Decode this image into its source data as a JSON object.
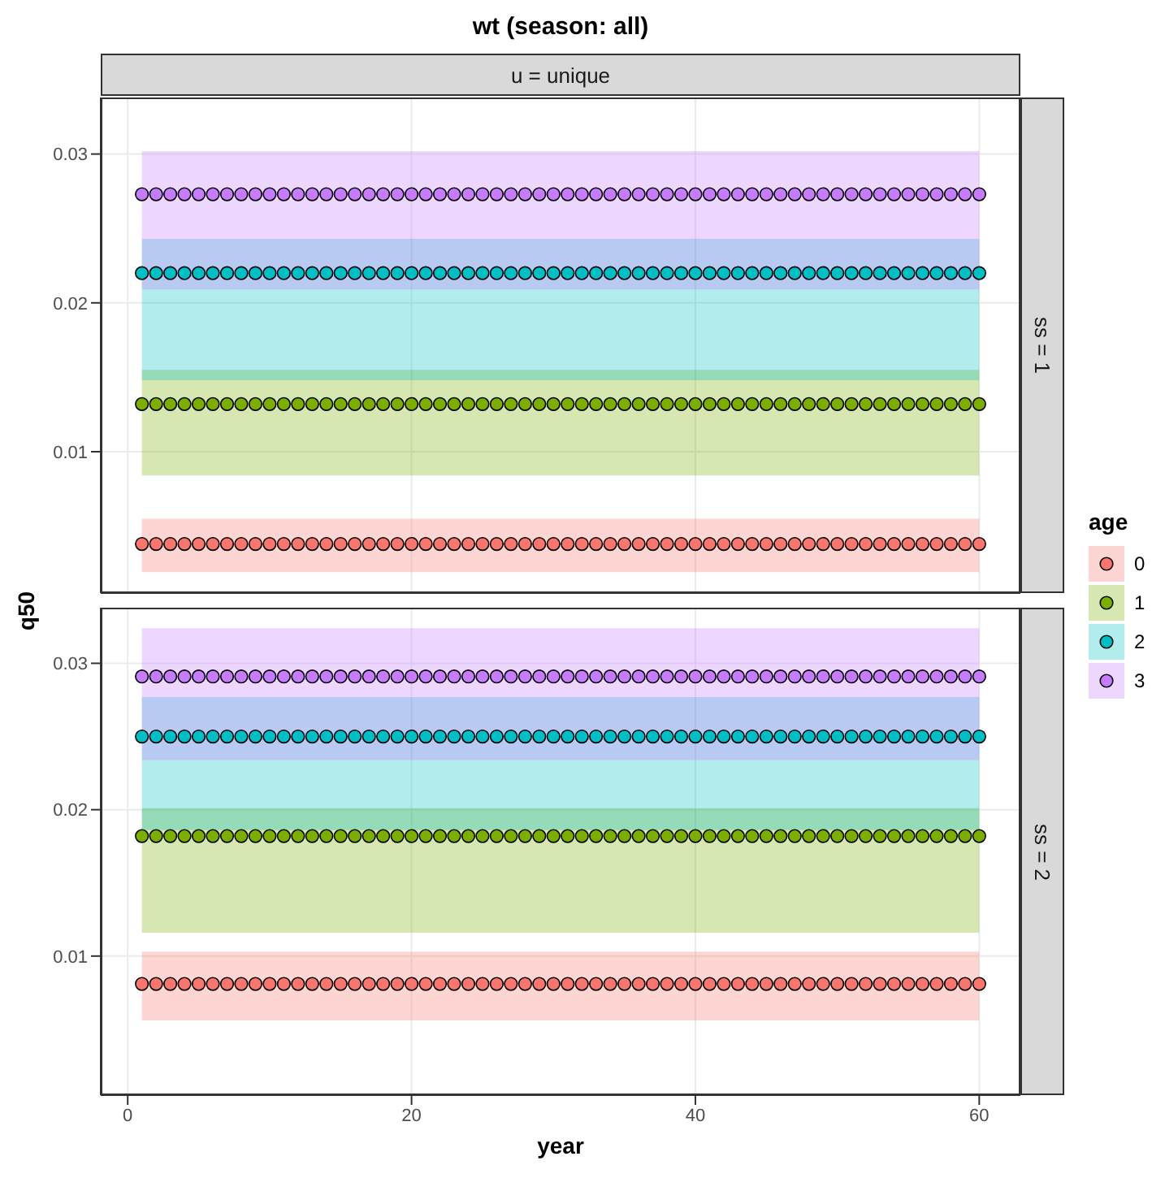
{
  "chart_data": [
    {
      "type": "scatter",
      "title": "wt (season: all)",
      "ylabel": "q50",
      "legend_title": "age",
      "legend": "right",
      "annotations": [
        "u = unique",
        "ss = 1"
      ],
      "tick_labels": "y",
      "marker": "circle",
      "grid": true,
      "xlim": [
        -1.9,
        62.9
      ],
      "xticks": [
        0,
        20,
        40,
        60
      ],
      "ylim": [
        0.0005,
        0.0338
      ],
      "yticks": [
        0.01,
        0.02,
        0.03
      ],
      "x": [
        1,
        2,
        3,
        4,
        5,
        6,
        7,
        8,
        9,
        10,
        11,
        12,
        13,
        14,
        15,
        16,
        17,
        18,
        19,
        20,
        21,
        22,
        23,
        24,
        25,
        26,
        27,
        28,
        29,
        30,
        31,
        32,
        33,
        34,
        35,
        36,
        37,
        38,
        39,
        40,
        41,
        42,
        43,
        44,
        45,
        46,
        47,
        48,
        49,
        50,
        51,
        52,
        53,
        54,
        55,
        56,
        57,
        58,
        59,
        60
      ],
      "series": [
        {
          "name": "0",
          "color": "#f8766d",
          "values": [
            0.0038,
            0.0038,
            0.0038,
            0.0038,
            0.0038,
            0.0038,
            0.0038,
            0.0038,
            0.0038,
            0.0038,
            0.0038,
            0.0038,
            0.0038,
            0.0038,
            0.0038,
            0.0038,
            0.0038,
            0.0038,
            0.0038,
            0.0038,
            0.0038,
            0.0038,
            0.0038,
            0.0038,
            0.0038,
            0.0038,
            0.0038,
            0.0038,
            0.0038,
            0.0038,
            0.0038,
            0.0038,
            0.0038,
            0.0038,
            0.0038,
            0.0038,
            0.0038,
            0.0038,
            0.0038,
            0.0038,
            0.0038,
            0.0038,
            0.0038,
            0.0038,
            0.0038,
            0.0038,
            0.0038,
            0.0038,
            0.0038,
            0.0038,
            0.0038,
            0.0038,
            0.0038,
            0.0038,
            0.0038,
            0.0038,
            0.0038,
            0.0038,
            0.0038,
            0.0038
          ],
          "lower": [
            0.0019,
            0.0019,
            0.0019,
            0.0019,
            0.0019,
            0.0019,
            0.0019,
            0.0019,
            0.0019,
            0.0019,
            0.0019,
            0.0019,
            0.0019,
            0.0019,
            0.0019,
            0.0019,
            0.0019,
            0.0019,
            0.0019,
            0.0019,
            0.0019,
            0.0019,
            0.0019,
            0.0019,
            0.0019,
            0.0019,
            0.0019,
            0.0019,
            0.0019,
            0.0019,
            0.0019,
            0.0019,
            0.0019,
            0.0019,
            0.0019,
            0.0019,
            0.0019,
            0.0019,
            0.0019,
            0.0019,
            0.0019,
            0.0019,
            0.0019,
            0.0019,
            0.0019,
            0.0019,
            0.0019,
            0.0019,
            0.0019,
            0.0019,
            0.0019,
            0.0019,
            0.0019,
            0.0019,
            0.0019,
            0.0019,
            0.0019,
            0.0019,
            0.0019,
            0.0019
          ],
          "upper": [
            0.0055,
            0.0055,
            0.0055,
            0.0055,
            0.0055,
            0.0055,
            0.0055,
            0.0055,
            0.0055,
            0.0055,
            0.0055,
            0.0055,
            0.0055,
            0.0055,
            0.0055,
            0.0055,
            0.0055,
            0.0055,
            0.0055,
            0.0055,
            0.0055,
            0.0055,
            0.0055,
            0.0055,
            0.0055,
            0.0055,
            0.0055,
            0.0055,
            0.0055,
            0.0055,
            0.0055,
            0.0055,
            0.0055,
            0.0055,
            0.0055,
            0.0055,
            0.0055,
            0.0055,
            0.0055,
            0.0055,
            0.0055,
            0.0055,
            0.0055,
            0.0055,
            0.0055,
            0.0055,
            0.0055,
            0.0055,
            0.0055,
            0.0055,
            0.0055,
            0.0055,
            0.0055,
            0.0055,
            0.0055,
            0.0055,
            0.0055,
            0.0055,
            0.0055,
            0.0055
          ]
        },
        {
          "name": "1",
          "color": "#7cae00",
          "values": [
            0.0132,
            0.0132,
            0.0132,
            0.0132,
            0.0132,
            0.0132,
            0.0132,
            0.0132,
            0.0132,
            0.0132,
            0.0132,
            0.0132,
            0.0132,
            0.0132,
            0.0132,
            0.0132,
            0.0132,
            0.0132,
            0.0132,
            0.0132,
            0.0132,
            0.0132,
            0.0132,
            0.0132,
            0.0132,
            0.0132,
            0.0132,
            0.0132,
            0.0132,
            0.0132,
            0.0132,
            0.0132,
            0.0132,
            0.0132,
            0.0132,
            0.0132,
            0.0132,
            0.0132,
            0.0132,
            0.0132,
            0.0132,
            0.0132,
            0.0132,
            0.0132,
            0.0132,
            0.0132,
            0.0132,
            0.0132,
            0.0132,
            0.0132,
            0.0132,
            0.0132,
            0.0132,
            0.0132,
            0.0132,
            0.0132,
            0.0132,
            0.0132,
            0.0132,
            0.0132
          ],
          "lower": [
            0.0084,
            0.0084,
            0.0084,
            0.0084,
            0.0084,
            0.0084,
            0.0084,
            0.0084,
            0.0084,
            0.0084,
            0.0084,
            0.0084,
            0.0084,
            0.0084,
            0.0084,
            0.0084,
            0.0084,
            0.0084,
            0.0084,
            0.0084,
            0.0084,
            0.0084,
            0.0084,
            0.0084,
            0.0084,
            0.0084,
            0.0084,
            0.0084,
            0.0084,
            0.0084,
            0.0084,
            0.0084,
            0.0084,
            0.0084,
            0.0084,
            0.0084,
            0.0084,
            0.0084,
            0.0084,
            0.0084,
            0.0084,
            0.0084,
            0.0084,
            0.0084,
            0.0084,
            0.0084,
            0.0084,
            0.0084,
            0.0084,
            0.0084,
            0.0084,
            0.0084,
            0.0084,
            0.0084,
            0.0084,
            0.0084,
            0.0084,
            0.0084,
            0.0084,
            0.0084
          ],
          "upper": [
            0.0155,
            0.0155,
            0.0155,
            0.0155,
            0.0155,
            0.0155,
            0.0155,
            0.0155,
            0.0155,
            0.0155,
            0.0155,
            0.0155,
            0.0155,
            0.0155,
            0.0155,
            0.0155,
            0.0155,
            0.0155,
            0.0155,
            0.0155,
            0.0155,
            0.0155,
            0.0155,
            0.0155,
            0.0155,
            0.0155,
            0.0155,
            0.0155,
            0.0155,
            0.0155,
            0.0155,
            0.0155,
            0.0155,
            0.0155,
            0.0155,
            0.0155,
            0.0155,
            0.0155,
            0.0155,
            0.0155,
            0.0155,
            0.0155,
            0.0155,
            0.0155,
            0.0155,
            0.0155,
            0.0155,
            0.0155,
            0.0155,
            0.0155,
            0.0155,
            0.0155,
            0.0155,
            0.0155,
            0.0155,
            0.0155,
            0.0155,
            0.0155,
            0.0155,
            0.0155
          ]
        },
        {
          "name": "2",
          "color": "#00bfc4",
          "values": [
            0.022,
            0.022,
            0.022,
            0.022,
            0.022,
            0.022,
            0.022,
            0.022,
            0.022,
            0.022,
            0.022,
            0.022,
            0.022,
            0.022,
            0.022,
            0.022,
            0.022,
            0.022,
            0.022,
            0.022,
            0.022,
            0.022,
            0.022,
            0.022,
            0.022,
            0.022,
            0.022,
            0.022,
            0.022,
            0.022,
            0.022,
            0.022,
            0.022,
            0.022,
            0.022,
            0.022,
            0.022,
            0.022,
            0.022,
            0.022,
            0.022,
            0.022,
            0.022,
            0.022,
            0.022,
            0.022,
            0.022,
            0.022,
            0.022,
            0.022,
            0.022,
            0.022,
            0.022,
            0.022,
            0.022,
            0.022,
            0.022,
            0.022,
            0.022,
            0.022
          ],
          "lower": [
            0.0148,
            0.0148,
            0.0148,
            0.0148,
            0.0148,
            0.0148,
            0.0148,
            0.0148,
            0.0148,
            0.0148,
            0.0148,
            0.0148,
            0.0148,
            0.0148,
            0.0148,
            0.0148,
            0.0148,
            0.0148,
            0.0148,
            0.0148,
            0.0148,
            0.0148,
            0.0148,
            0.0148,
            0.0148,
            0.0148,
            0.0148,
            0.0148,
            0.0148,
            0.0148,
            0.0148,
            0.0148,
            0.0148,
            0.0148,
            0.0148,
            0.0148,
            0.0148,
            0.0148,
            0.0148,
            0.0148,
            0.0148,
            0.0148,
            0.0148,
            0.0148,
            0.0148,
            0.0148,
            0.0148,
            0.0148,
            0.0148,
            0.0148,
            0.0148,
            0.0148,
            0.0148,
            0.0148,
            0.0148,
            0.0148,
            0.0148,
            0.0148,
            0.0148,
            0.0148
          ],
          "upper": [
            0.0243,
            0.0243,
            0.0243,
            0.0243,
            0.0243,
            0.0243,
            0.0243,
            0.0243,
            0.0243,
            0.0243,
            0.0243,
            0.0243,
            0.0243,
            0.0243,
            0.0243,
            0.0243,
            0.0243,
            0.0243,
            0.0243,
            0.0243,
            0.0243,
            0.0243,
            0.0243,
            0.0243,
            0.0243,
            0.0243,
            0.0243,
            0.0243,
            0.0243,
            0.0243,
            0.0243,
            0.0243,
            0.0243,
            0.0243,
            0.0243,
            0.0243,
            0.0243,
            0.0243,
            0.0243,
            0.0243,
            0.0243,
            0.0243,
            0.0243,
            0.0243,
            0.0243,
            0.0243,
            0.0243,
            0.0243,
            0.0243,
            0.0243,
            0.0243,
            0.0243,
            0.0243,
            0.0243,
            0.0243,
            0.0243,
            0.0243,
            0.0243,
            0.0243,
            0.0243
          ]
        },
        {
          "name": "3",
          "color": "#c77cff",
          "values": [
            0.0273,
            0.0273,
            0.0273,
            0.0273,
            0.0273,
            0.0273,
            0.0273,
            0.0273,
            0.0273,
            0.0273,
            0.0273,
            0.0273,
            0.0273,
            0.0273,
            0.0273,
            0.0273,
            0.0273,
            0.0273,
            0.0273,
            0.0273,
            0.0273,
            0.0273,
            0.0273,
            0.0273,
            0.0273,
            0.0273,
            0.0273,
            0.0273,
            0.0273,
            0.0273,
            0.0273,
            0.0273,
            0.0273,
            0.0273,
            0.0273,
            0.0273,
            0.0273,
            0.0273,
            0.0273,
            0.0273,
            0.0273,
            0.0273,
            0.0273,
            0.0273,
            0.0273,
            0.0273,
            0.0273,
            0.0273,
            0.0273,
            0.0273,
            0.0273,
            0.0273,
            0.0273,
            0.0273,
            0.0273,
            0.0273,
            0.0273,
            0.0273,
            0.0273,
            0.0273
          ],
          "lower": [
            0.0209,
            0.0209,
            0.0209,
            0.0209,
            0.0209,
            0.0209,
            0.0209,
            0.0209,
            0.0209,
            0.0209,
            0.0209,
            0.0209,
            0.0209,
            0.0209,
            0.0209,
            0.0209,
            0.0209,
            0.0209,
            0.0209,
            0.0209,
            0.0209,
            0.0209,
            0.0209,
            0.0209,
            0.0209,
            0.0209,
            0.0209,
            0.0209,
            0.0209,
            0.0209,
            0.0209,
            0.0209,
            0.0209,
            0.0209,
            0.0209,
            0.0209,
            0.0209,
            0.0209,
            0.0209,
            0.0209,
            0.0209,
            0.0209,
            0.0209,
            0.0209,
            0.0209,
            0.0209,
            0.0209,
            0.0209,
            0.0209,
            0.0209,
            0.0209,
            0.0209,
            0.0209,
            0.0209,
            0.0209,
            0.0209,
            0.0209,
            0.0209,
            0.0209,
            0.0209
          ],
          "upper": [
            0.0302,
            0.0302,
            0.0302,
            0.0302,
            0.0302,
            0.0302,
            0.0302,
            0.0302,
            0.0302,
            0.0302,
            0.0302,
            0.0302,
            0.0302,
            0.0302,
            0.0302,
            0.0302,
            0.0302,
            0.0302,
            0.0302,
            0.0302,
            0.0302,
            0.0302,
            0.0302,
            0.0302,
            0.0302,
            0.0302,
            0.0302,
            0.0302,
            0.0302,
            0.0302,
            0.0302,
            0.0302,
            0.0302,
            0.0302,
            0.0302,
            0.0302,
            0.0302,
            0.0302,
            0.0302,
            0.0302,
            0.0302,
            0.0302,
            0.0302,
            0.0302,
            0.0302,
            0.0302,
            0.0302,
            0.0302,
            0.0302,
            0.0302,
            0.0302,
            0.0302,
            0.0302,
            0.0302,
            0.0302,
            0.0302,
            0.0302,
            0.0302,
            0.0302,
            0.0302
          ]
        }
      ]
    },
    {
      "type": "scatter",
      "xlabel": "year",
      "annotations": [
        "ss = 2"
      ],
      "marker": "circle",
      "grid": true,
      "xlim": [
        -1.9,
        62.9
      ],
      "xticks": [
        0,
        20,
        40,
        60
      ],
      "ylim": [
        0.0005,
        0.0338
      ],
      "yticks": [
        0.01,
        0.02,
        0.03
      ],
      "x": [
        1,
        2,
        3,
        4,
        5,
        6,
        7,
        8,
        9,
        10,
        11,
        12,
        13,
        14,
        15,
        16,
        17,
        18,
        19,
        20,
        21,
        22,
        23,
        24,
        25,
        26,
        27,
        28,
        29,
        30,
        31,
        32,
        33,
        34,
        35,
        36,
        37,
        38,
        39,
        40,
        41,
        42,
        43,
        44,
        45,
        46,
        47,
        48,
        49,
        50,
        51,
        52,
        53,
        54,
        55,
        56,
        57,
        58,
        59,
        60
      ],
      "series": [
        {
          "name": "0",
          "color": "#f8766d",
          "values": [
            0.0081,
            0.0081,
            0.0081,
            0.0081,
            0.0081,
            0.0081,
            0.0081,
            0.0081,
            0.0081,
            0.0081,
            0.0081,
            0.0081,
            0.0081,
            0.0081,
            0.0081,
            0.0081,
            0.0081,
            0.0081,
            0.0081,
            0.0081,
            0.0081,
            0.0081,
            0.0081,
            0.0081,
            0.0081,
            0.0081,
            0.0081,
            0.0081,
            0.0081,
            0.0081,
            0.0081,
            0.0081,
            0.0081,
            0.0081,
            0.0081,
            0.0081,
            0.0081,
            0.0081,
            0.0081,
            0.0081,
            0.0081,
            0.0081,
            0.0081,
            0.0081,
            0.0081,
            0.0081,
            0.0081,
            0.0081,
            0.0081,
            0.0081,
            0.0081,
            0.0081,
            0.0081,
            0.0081,
            0.0081,
            0.0081,
            0.0081,
            0.0081,
            0.0081,
            0.0081
          ],
          "lower": [
            0.0056,
            0.0056,
            0.0056,
            0.0056,
            0.0056,
            0.0056,
            0.0056,
            0.0056,
            0.0056,
            0.0056,
            0.0056,
            0.0056,
            0.0056,
            0.0056,
            0.0056,
            0.0056,
            0.0056,
            0.0056,
            0.0056,
            0.0056,
            0.0056,
            0.0056,
            0.0056,
            0.0056,
            0.0056,
            0.0056,
            0.0056,
            0.0056,
            0.0056,
            0.0056,
            0.0056,
            0.0056,
            0.0056,
            0.0056,
            0.0056,
            0.0056,
            0.0056,
            0.0056,
            0.0056,
            0.0056,
            0.0056,
            0.0056,
            0.0056,
            0.0056,
            0.0056,
            0.0056,
            0.0056,
            0.0056,
            0.0056,
            0.0056,
            0.0056,
            0.0056,
            0.0056,
            0.0056,
            0.0056,
            0.0056,
            0.0056,
            0.0056,
            0.0056,
            0.0056
          ],
          "upper": [
            0.0103,
            0.0103,
            0.0103,
            0.0103,
            0.0103,
            0.0103,
            0.0103,
            0.0103,
            0.0103,
            0.0103,
            0.0103,
            0.0103,
            0.0103,
            0.0103,
            0.0103,
            0.0103,
            0.0103,
            0.0103,
            0.0103,
            0.0103,
            0.0103,
            0.0103,
            0.0103,
            0.0103,
            0.0103,
            0.0103,
            0.0103,
            0.0103,
            0.0103,
            0.0103,
            0.0103,
            0.0103,
            0.0103,
            0.0103,
            0.0103,
            0.0103,
            0.0103,
            0.0103,
            0.0103,
            0.0103,
            0.0103,
            0.0103,
            0.0103,
            0.0103,
            0.0103,
            0.0103,
            0.0103,
            0.0103,
            0.0103,
            0.0103,
            0.0103,
            0.0103,
            0.0103,
            0.0103,
            0.0103,
            0.0103,
            0.0103,
            0.0103,
            0.0103,
            0.0103
          ]
        },
        {
          "name": "1",
          "color": "#7cae00",
          "values": [
            0.0182,
            0.0182,
            0.0182,
            0.0182,
            0.0182,
            0.0182,
            0.0182,
            0.0182,
            0.0182,
            0.0182,
            0.0182,
            0.0182,
            0.0182,
            0.0182,
            0.0182,
            0.0182,
            0.0182,
            0.0182,
            0.0182,
            0.0182,
            0.0182,
            0.0182,
            0.0182,
            0.0182,
            0.0182,
            0.0182,
            0.0182,
            0.0182,
            0.0182,
            0.0182,
            0.0182,
            0.0182,
            0.0182,
            0.0182,
            0.0182,
            0.0182,
            0.0182,
            0.0182,
            0.0182,
            0.0182,
            0.0182,
            0.0182,
            0.0182,
            0.0182,
            0.0182,
            0.0182,
            0.0182,
            0.0182,
            0.0182,
            0.0182,
            0.0182,
            0.0182,
            0.0182,
            0.0182,
            0.0182,
            0.0182,
            0.0182,
            0.0182,
            0.0182,
            0.0182
          ],
          "lower": [
            0.0116,
            0.0116,
            0.0116,
            0.0116,
            0.0116,
            0.0116,
            0.0116,
            0.0116,
            0.0116,
            0.0116,
            0.0116,
            0.0116,
            0.0116,
            0.0116,
            0.0116,
            0.0116,
            0.0116,
            0.0116,
            0.0116,
            0.0116,
            0.0116,
            0.0116,
            0.0116,
            0.0116,
            0.0116,
            0.0116,
            0.0116,
            0.0116,
            0.0116,
            0.0116,
            0.0116,
            0.0116,
            0.0116,
            0.0116,
            0.0116,
            0.0116,
            0.0116,
            0.0116,
            0.0116,
            0.0116,
            0.0116,
            0.0116,
            0.0116,
            0.0116,
            0.0116,
            0.0116,
            0.0116,
            0.0116,
            0.0116,
            0.0116,
            0.0116,
            0.0116,
            0.0116,
            0.0116,
            0.0116,
            0.0116,
            0.0116,
            0.0116,
            0.0116,
            0.0116
          ],
          "upper": [
            0.0201,
            0.0201,
            0.0201,
            0.0201,
            0.0201,
            0.0201,
            0.0201,
            0.0201,
            0.0201,
            0.0201,
            0.0201,
            0.0201,
            0.0201,
            0.0201,
            0.0201,
            0.0201,
            0.0201,
            0.0201,
            0.0201,
            0.0201,
            0.0201,
            0.0201,
            0.0201,
            0.0201,
            0.0201,
            0.0201,
            0.0201,
            0.0201,
            0.0201,
            0.0201,
            0.0201,
            0.0201,
            0.0201,
            0.0201,
            0.0201,
            0.0201,
            0.0201,
            0.0201,
            0.0201,
            0.0201,
            0.0201,
            0.0201,
            0.0201,
            0.0201,
            0.0201,
            0.0201,
            0.0201,
            0.0201,
            0.0201,
            0.0201,
            0.0201,
            0.0201,
            0.0201,
            0.0201,
            0.0201,
            0.0201,
            0.0201,
            0.0201,
            0.0201,
            0.0201
          ]
        },
        {
          "name": "2",
          "color": "#00bfc4",
          "values": [
            0.025,
            0.025,
            0.025,
            0.025,
            0.025,
            0.025,
            0.025,
            0.025,
            0.025,
            0.025,
            0.025,
            0.025,
            0.025,
            0.025,
            0.025,
            0.025,
            0.025,
            0.025,
            0.025,
            0.025,
            0.025,
            0.025,
            0.025,
            0.025,
            0.025,
            0.025,
            0.025,
            0.025,
            0.025,
            0.025,
            0.025,
            0.025,
            0.025,
            0.025,
            0.025,
            0.025,
            0.025,
            0.025,
            0.025,
            0.025,
            0.025,
            0.025,
            0.025,
            0.025,
            0.025,
            0.025,
            0.025,
            0.025,
            0.025,
            0.025,
            0.025,
            0.025,
            0.025,
            0.025,
            0.025,
            0.025,
            0.025,
            0.025,
            0.025,
            0.025
          ],
          "lower": [
            0.0186,
            0.0186,
            0.0186,
            0.0186,
            0.0186,
            0.0186,
            0.0186,
            0.0186,
            0.0186,
            0.0186,
            0.0186,
            0.0186,
            0.0186,
            0.0186,
            0.0186,
            0.0186,
            0.0186,
            0.0186,
            0.0186,
            0.0186,
            0.0186,
            0.0186,
            0.0186,
            0.0186,
            0.0186,
            0.0186,
            0.0186,
            0.0186,
            0.0186,
            0.0186,
            0.0186,
            0.0186,
            0.0186,
            0.0186,
            0.0186,
            0.0186,
            0.0186,
            0.0186,
            0.0186,
            0.0186,
            0.0186,
            0.0186,
            0.0186,
            0.0186,
            0.0186,
            0.0186,
            0.0186,
            0.0186,
            0.0186,
            0.0186,
            0.0186,
            0.0186,
            0.0186,
            0.0186,
            0.0186,
            0.0186,
            0.0186,
            0.0186,
            0.0186,
            0.0186
          ],
          "upper": [
            0.0277,
            0.0277,
            0.0277,
            0.0277,
            0.0277,
            0.0277,
            0.0277,
            0.0277,
            0.0277,
            0.0277,
            0.0277,
            0.0277,
            0.0277,
            0.0277,
            0.0277,
            0.0277,
            0.0277,
            0.0277,
            0.0277,
            0.0277,
            0.0277,
            0.0277,
            0.0277,
            0.0277,
            0.0277,
            0.0277,
            0.0277,
            0.0277,
            0.0277,
            0.0277,
            0.0277,
            0.0277,
            0.0277,
            0.0277,
            0.0277,
            0.0277,
            0.0277,
            0.0277,
            0.0277,
            0.0277,
            0.0277,
            0.0277,
            0.0277,
            0.0277,
            0.0277,
            0.0277,
            0.0277,
            0.0277,
            0.0277,
            0.0277,
            0.0277,
            0.0277,
            0.0277,
            0.0277,
            0.0277,
            0.0277,
            0.0277,
            0.0277,
            0.0277,
            0.0277
          ]
        },
        {
          "name": "3",
          "color": "#c77cff",
          "values": [
            0.0291,
            0.0291,
            0.0291,
            0.0291,
            0.0291,
            0.0291,
            0.0291,
            0.0291,
            0.0291,
            0.0291,
            0.0291,
            0.0291,
            0.0291,
            0.0291,
            0.0291,
            0.0291,
            0.0291,
            0.0291,
            0.0291,
            0.0291,
            0.0291,
            0.0291,
            0.0291,
            0.0291,
            0.0291,
            0.0291,
            0.0291,
            0.0291,
            0.0291,
            0.0291,
            0.0291,
            0.0291,
            0.0291,
            0.0291,
            0.0291,
            0.0291,
            0.0291,
            0.0291,
            0.0291,
            0.0291,
            0.0291,
            0.0291,
            0.0291,
            0.0291,
            0.0291,
            0.0291,
            0.0291,
            0.0291,
            0.0291,
            0.0291,
            0.0291,
            0.0291,
            0.0291,
            0.0291,
            0.0291,
            0.0291,
            0.0291,
            0.0291,
            0.0291,
            0.0291
          ],
          "lower": [
            0.0234,
            0.0234,
            0.0234,
            0.0234,
            0.0234,
            0.0234,
            0.0234,
            0.0234,
            0.0234,
            0.0234,
            0.0234,
            0.0234,
            0.0234,
            0.0234,
            0.0234,
            0.0234,
            0.0234,
            0.0234,
            0.0234,
            0.0234,
            0.0234,
            0.0234,
            0.0234,
            0.0234,
            0.0234,
            0.0234,
            0.0234,
            0.0234,
            0.0234,
            0.0234,
            0.0234,
            0.0234,
            0.0234,
            0.0234,
            0.0234,
            0.0234,
            0.0234,
            0.0234,
            0.0234,
            0.0234,
            0.0234,
            0.0234,
            0.0234,
            0.0234,
            0.0234,
            0.0234,
            0.0234,
            0.0234,
            0.0234,
            0.0234,
            0.0234,
            0.0234,
            0.0234,
            0.0234,
            0.0234,
            0.0234,
            0.0234,
            0.0234,
            0.0234,
            0.0234
          ],
          "upper": [
            0.0324,
            0.0324,
            0.0324,
            0.0324,
            0.0324,
            0.0324,
            0.0324,
            0.0324,
            0.0324,
            0.0324,
            0.0324,
            0.0324,
            0.0324,
            0.0324,
            0.0324,
            0.0324,
            0.0324,
            0.0324,
            0.0324,
            0.0324,
            0.0324,
            0.0324,
            0.0324,
            0.0324,
            0.0324,
            0.0324,
            0.0324,
            0.0324,
            0.0324,
            0.0324,
            0.0324,
            0.0324,
            0.0324,
            0.0324,
            0.0324,
            0.0324,
            0.0324,
            0.0324,
            0.0324,
            0.0324,
            0.0324,
            0.0324,
            0.0324,
            0.0324,
            0.0324,
            0.0324,
            0.0324,
            0.0324,
            0.0324,
            0.0324,
            0.0324,
            0.0324,
            0.0324,
            0.0324,
            0.0324,
            0.0324,
            0.0324,
            0.0324,
            0.0324,
            0.0324
          ]
        }
      ]
    }
  ]
}
